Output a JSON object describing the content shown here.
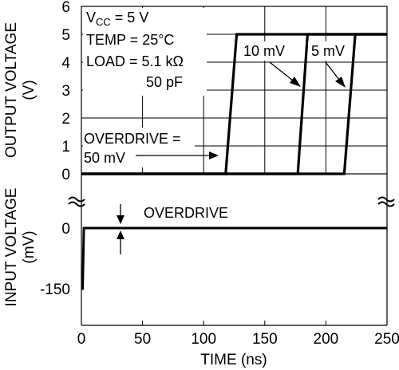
{
  "chart_data": {
    "type": "line",
    "xlabel": "TIME (ns)",
    "x_ticks": [
      "0",
      "50",
      "100",
      "150",
      "200",
      "250"
    ],
    "xlim": [
      0,
      250
    ],
    "top_panel": {
      "ylabel_line1": "OUTPUT VOLTAGE",
      "ylabel_line2": "(V)",
      "ylim": [
        0,
        6
      ],
      "y_ticks": [
        "0",
        "1",
        "2",
        "3",
        "4",
        "5",
        "6"
      ],
      "grid": true,
      "series": [
        {
          "name": "50 mV",
          "x": [
            0,
            118,
            127,
            250
          ],
          "y": [
            0,
            0,
            5,
            5
          ]
        },
        {
          "name": "10 mV",
          "x": [
            0,
            177,
            185,
            250
          ],
          "y": [
            0,
            0,
            5,
            5
          ]
        },
        {
          "name": "5 mV",
          "x": [
            0,
            215,
            224,
            250
          ],
          "y": [
            0,
            0,
            5,
            5
          ]
        }
      ],
      "conditions": {
        "vcc_prefix": "V",
        "vcc_sub": "CC",
        "vcc_rest": " = 5 V",
        "temp": "TEMP = 25°C",
        "load": "LOAD = 5.1 kΩ",
        "cap": "50 pF"
      },
      "annotations": {
        "overdrive_line1": "OVERDRIVE =",
        "overdrive_line2": "50 mV",
        "label_10mv": "10 mV",
        "label_5mv": "5 mV"
      }
    },
    "bottom_panel": {
      "ylabel_line1": "INPUT VOLTAGE",
      "ylabel_line2": "(mV)",
      "y_ticks": [
        "0",
        "-150"
      ],
      "ylim": [
        -150,
        0
      ],
      "series": [
        {
          "name": "input",
          "x": [
            0,
            1,
            2,
            250
          ],
          "y": [
            -150,
            -150,
            0,
            0
          ]
        }
      ],
      "annotations": {
        "overdrive": "OVERDRIVE"
      }
    }
  }
}
